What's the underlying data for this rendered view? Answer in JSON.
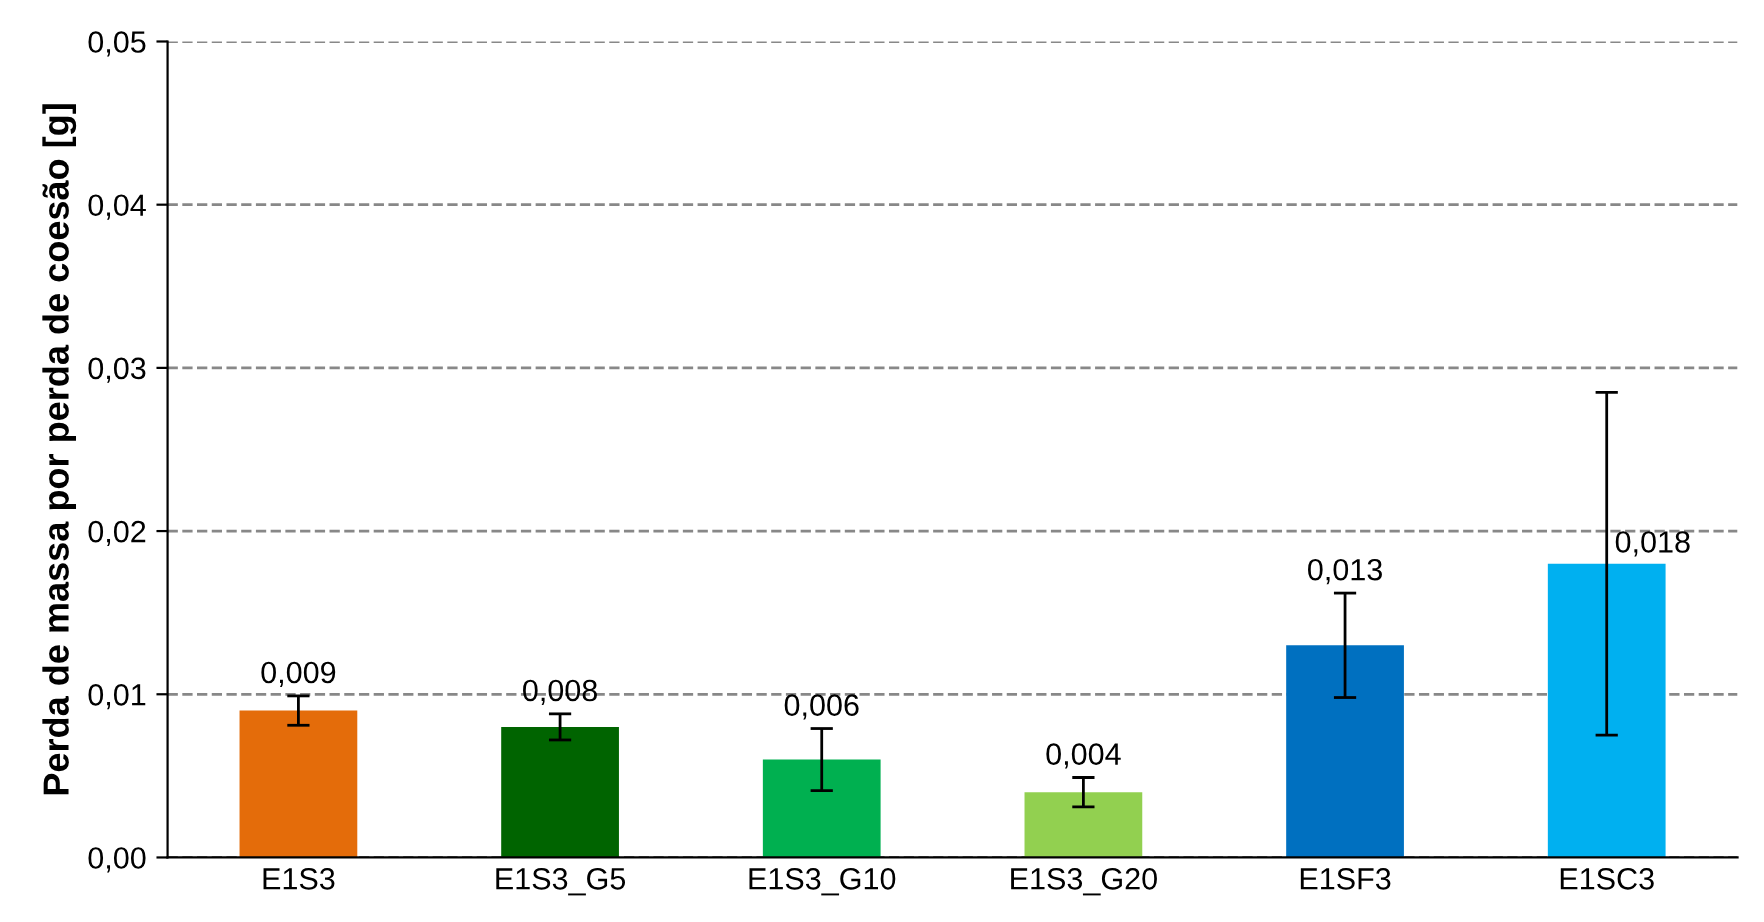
{
  "chart_data": {
    "type": "bar",
    "ylabel": "Perda de massa por perda de coesão [g]",
    "categories": [
      "E1S3",
      "E1S3_G5",
      "E1S3_G10",
      "E1S3_G20",
      "E1SF3",
      "E1SC3"
    ],
    "values": [
      0.009,
      0.008,
      0.006,
      0.004,
      0.013,
      0.018
    ],
    "colors": [
      "#e46c0a",
      "#006400",
      "#00b050",
      "#92d050",
      "#0070c0",
      "#00b0f0"
    ],
    "errors": [
      0.0009,
      0.0008,
      0.0019,
      0.0009,
      0.0032,
      0.0105
    ],
    "value_labels": [
      "0,009",
      "0,008",
      "0,006",
      "0,004",
      "0,013",
      "0,018"
    ],
    "ylim": [
      0,
      0.05
    ],
    "yticks": [
      {
        "value": 0,
        "label": "0,00"
      },
      {
        "value": 0.01,
        "label": "0,01"
      },
      {
        "value": 0.02,
        "label": "0,02"
      },
      {
        "value": 0.03,
        "label": "0,03"
      },
      {
        "value": 0.04,
        "label": "0,04"
      },
      {
        "value": 0.05,
        "label": "0,05"
      }
    ],
    "grid": "y"
  }
}
